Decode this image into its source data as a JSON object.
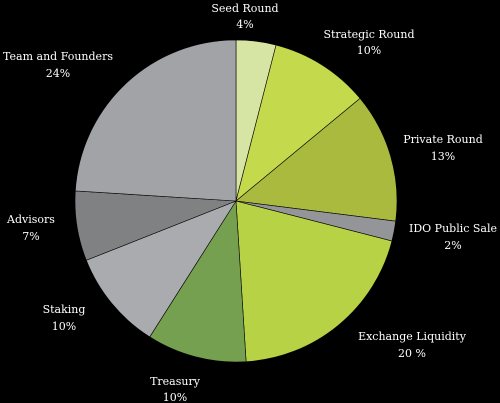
{
  "chart_data": {
    "type": "pie",
    "title": "",
    "start_angle_deg": 0,
    "direction": "clockwise",
    "legend": "none",
    "slices": [
      {
        "name": "Seed Round",
        "value": 4,
        "label": "Seed Round",
        "value_label": "4%",
        "color": "#d6e5a3"
      },
      {
        "name": "Strategic Round",
        "value": 10,
        "label": "Strategic Round",
        "value_label": "10%",
        "color": "#c4d94b"
      },
      {
        "name": "Private Round",
        "value": 13,
        "label": "Private Round",
        "value_label": "13%",
        "color": "#a9ba3e"
      },
      {
        "name": "IDO Public Sale",
        "value": 2,
        "label": "IDO Public Sale",
        "value_label": "2%",
        "color": "#939598"
      },
      {
        "name": "Exchange Liquidity",
        "value": 20,
        "label": "Exchange Liquidity",
        "value_label": "20 %",
        "color": "#b7d245"
      },
      {
        "name": "Treasury",
        "value": 10,
        "label": "Treasury",
        "value_label": "10%",
        "color": "#75a050"
      },
      {
        "name": "Staking",
        "value": 10,
        "label": "Staking",
        "value_label": "10%",
        "color": "#a9abae"
      },
      {
        "name": "Advisors",
        "value": 7,
        "label": "Advisors",
        "value_label": "7%",
        "color": "#7f8183"
      },
      {
        "name": "Team and Founders",
        "value": 24,
        "label": "Team and Founders",
        "value_label": "24%",
        "color": "#a1a3a6"
      }
    ]
  }
}
